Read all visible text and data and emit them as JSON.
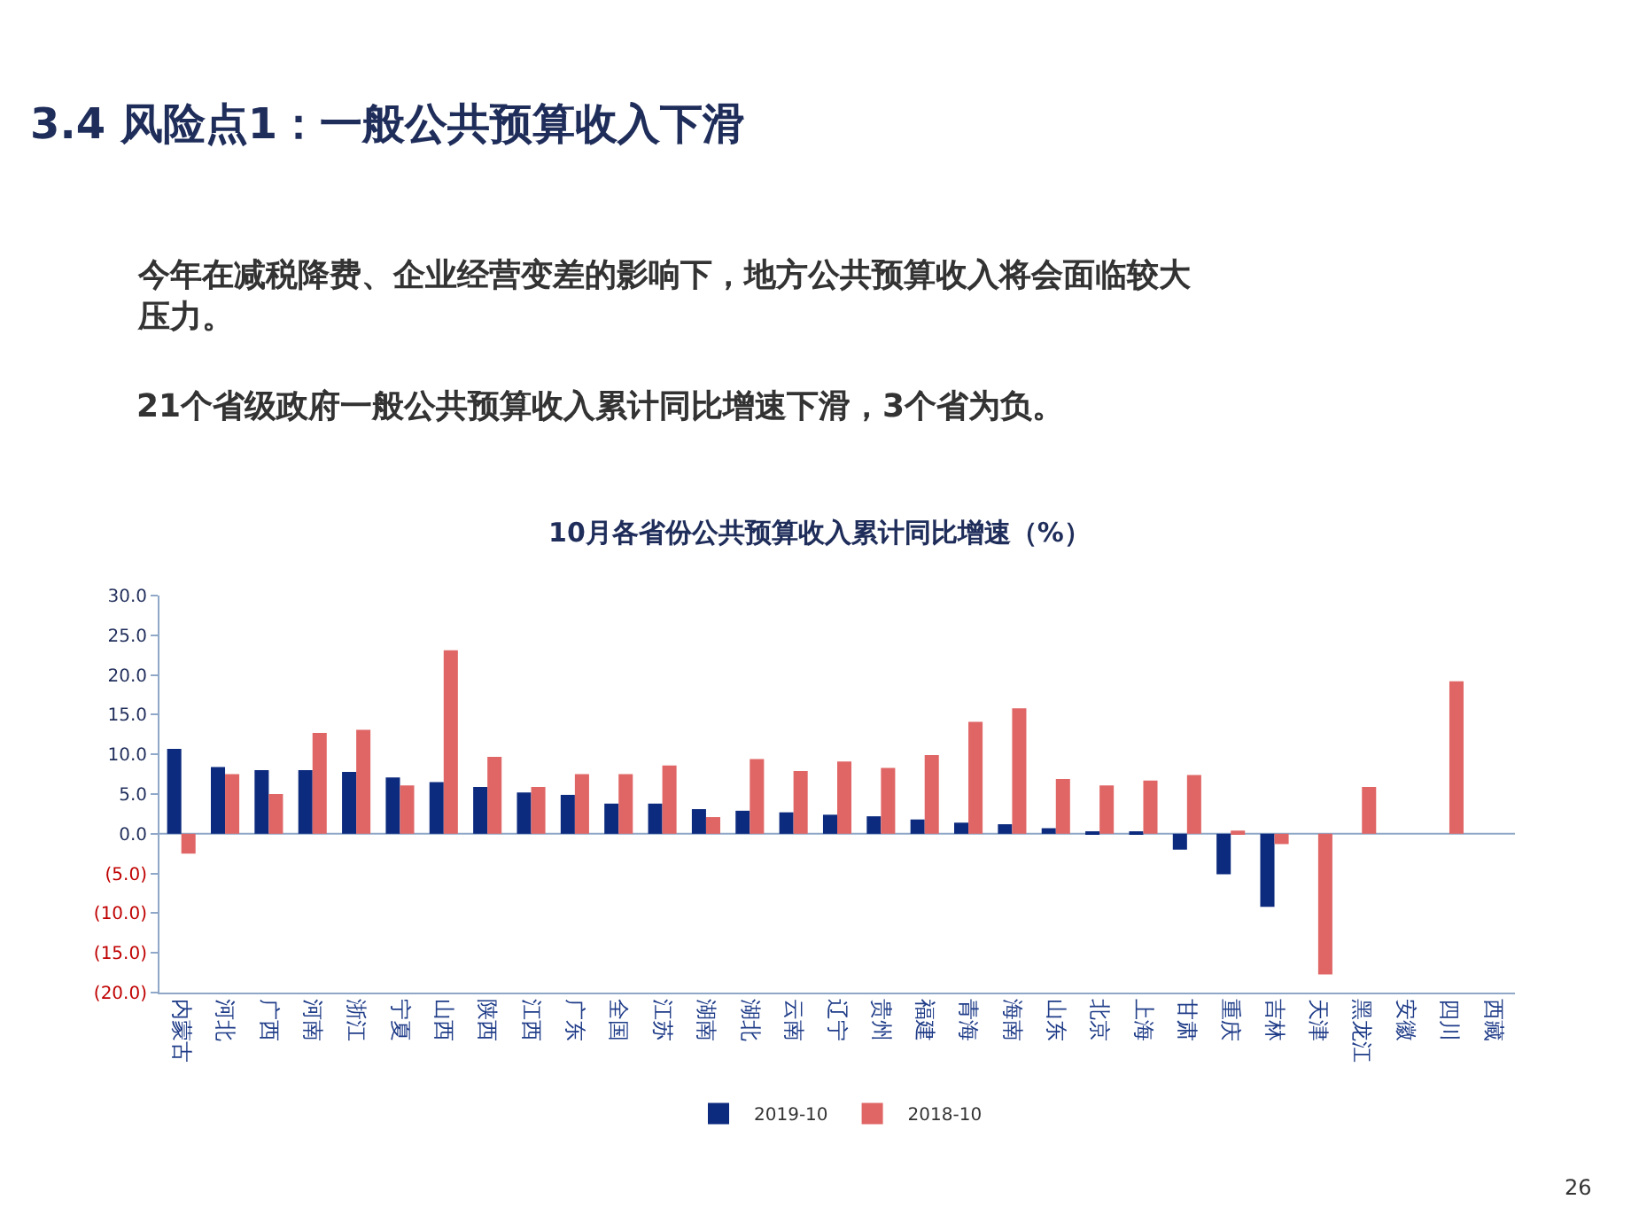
{
  "chart_data": {
    "type": "bar",
    "title": "10月各省份公共预算收入累计同比增速（%）",
    "annotations": [
      "3.4 风险点1：一般公共预算收入下滑",
      "今年在减税降费、企业经营变差的影响下，地方公共预算收入将会面临较大压力。",
      "21个省级政府一般公共预算收入累计同比增速下滑，3个省为负。",
      "26"
    ],
    "categories": [
      "内蒙古",
      "河北",
      "广西",
      "河南",
      "浙江",
      "宁夏",
      "山西",
      "陕西",
      "江西",
      "广东",
      "全国",
      "江苏",
      "湖南",
      "湖北",
      "云南",
      "辽宁",
      "贵州",
      "福建",
      "青海",
      "海南",
      "山东",
      "北京",
      "上海",
      "甘肃",
      "重庆",
      "吉林",
      "天津",
      "黑龙江",
      "安徽",
      "四川",
      "西藏"
    ],
    "series": [
      {
        "name": "2019-10",
        "color": "#0d2b7e",
        "values": [
          10.7,
          8.4,
          8.0,
          8.0,
          7.8,
          7.1,
          6.5,
          5.9,
          5.2,
          4.9,
          3.8,
          3.8,
          3.1,
          2.9,
          2.7,
          2.4,
          2.2,
          1.8,
          1.4,
          1.2,
          0.7,
          0.2,
          0.1,
          -2.0,
          -5.1,
          -9.2,
          null,
          null,
          null,
          null,
          null
        ]
      },
      {
        "name": "2018-10",
        "color": "#e06666",
        "values": [
          -2.5,
          7.5,
          5.0,
          12.7,
          13.1,
          6.1,
          23.1,
          9.7,
          5.9,
          7.5,
          7.5,
          8.6,
          2.1,
          9.4,
          7.9,
          9.1,
          8.3,
          9.9,
          14.1,
          15.8,
          6.9,
          6.1,
          6.7,
          7.4,
          0.4,
          -1.3,
          -17.7,
          5.9,
          null,
          19.2,
          null
        ]
      }
    ],
    "ylim": [
      -20,
      30
    ],
    "yticks": [
      {
        "value": -20,
        "label": "(20.0)"
      },
      {
        "value": -15,
        "label": "(15.0)"
      },
      {
        "value": -10,
        "label": "(10.0)"
      },
      {
        "value": -5,
        "label": "(5.0)"
      },
      {
        "value": 0,
        "label": "0.0"
      },
      {
        "value": 5,
        "label": "5.0"
      },
      {
        "value": 10,
        "label": "10.0"
      },
      {
        "value": 15,
        "label": "15.0"
      },
      {
        "value": 20,
        "label": "20.0"
      },
      {
        "value": 25,
        "label": "25.0"
      },
      {
        "value": 30,
        "label": "30.0"
      }
    ],
    "ref_lines": [
      {
        "axis": "y",
        "value": 0,
        "color": "#8fa8c8"
      }
    ],
    "legend": "bottom"
  }
}
